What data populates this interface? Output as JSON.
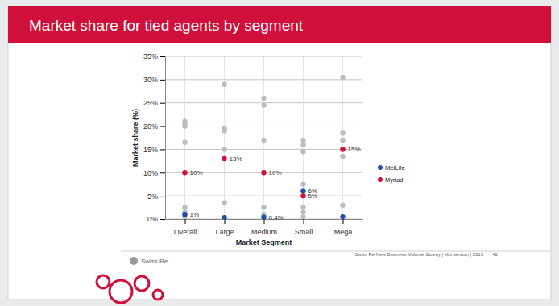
{
  "chart_data": {
    "type": "scatter",
    "title": "Market share for tied agents by segment",
    "x_label": "Market Segment",
    "y_label": "Market share (%)",
    "categories": [
      "Overall",
      "Large",
      "Medium",
      "Small",
      "Mega"
    ],
    "ylim": [
      0,
      35
    ],
    "yticks": [
      {
        "value": 0,
        "label": "0%"
      },
      {
        "value": 5,
        "label": "5%"
      },
      {
        "value": 10,
        "label": "10%"
      },
      {
        "value": 15,
        "label": "15%"
      },
      {
        "value": 20,
        "label": "20%"
      },
      {
        "value": 25,
        "label": "25%"
      },
      {
        "value": 30,
        "label": "30%"
      },
      {
        "value": 35,
        "label": "35%"
      }
    ],
    "grid": true,
    "legend": "right",
    "marker": "circle",
    "data_labels": true,
    "series": [
      {
        "color": "#b9bebe",
        "values": [
          21,
          29,
          26,
          17,
          30.5
        ]
      },
      {
        "color": "#b9bebe",
        "values": [
          20.5,
          19.5,
          24.5,
          16,
          18.5
        ]
      },
      {
        "color": "#b9bebe",
        "values": [
          20,
          19,
          17,
          14.5,
          17
        ]
      },
      {
        "color": "#b9bebe",
        "values": [
          16.5,
          15,
          2.5,
          7.5,
          13.5
        ]
      },
      {
        "color": "#b9bebe",
        "values": [
          2.5,
          3.5,
          1,
          2.5,
          3
        ]
      },
      {
        "color": "#b9bebe",
        "values": [
          1.5,
          null,
          null,
          1.5,
          null
        ]
      },
      {
        "color": "#b9bebe",
        "values": [
          0.5,
          null,
          null,
          0.5,
          null
        ]
      },
      {
        "name": "MetLife",
        "color": "#1f4ea8",
        "values": [
          1,
          0.3,
          0.4,
          6,
          0.5
        ],
        "value_labels": [
          "1%",
          null,
          "0.4%",
          "6%",
          null
        ]
      },
      {
        "name": "Myriad",
        "color": "#d0103a",
        "values": [
          10,
          13,
          10,
          5,
          15
        ],
        "value_labels": [
          "10%",
          "13%",
          "10%",
          "5%",
          "15%"
        ]
      }
    ]
  },
  "footer": {
    "logo": "Swiss Re",
    "source": "Swiss Re New Business Volume Survey | Momentum | 2015",
    "page": "42"
  }
}
